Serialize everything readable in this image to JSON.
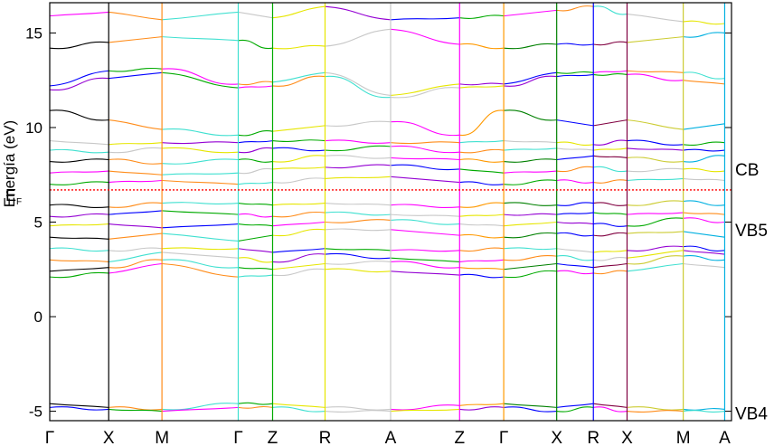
{
  "chart_data": {
    "type": "line",
    "title": "",
    "ylabel": "Energía (eV)",
    "xlabel": "",
    "ylim": [
      -5.5,
      16.6
    ],
    "yticks": [
      -5,
      0,
      5,
      10,
      15
    ],
    "xlim": [
      0,
      1
    ],
    "kpoints": [
      {
        "label": "Γ",
        "x": 0.0
      },
      {
        "label": "X",
        "x": 0.0865
      },
      {
        "label": "M",
        "x": 0.1646
      },
      {
        "label": "Γ",
        "x": 0.2765
      },
      {
        "label": "Z",
        "x": 0.3269
      },
      {
        "label": "R",
        "x": 0.4038
      },
      {
        "label": "A",
        "x": 0.5
      },
      {
        "label": "Z",
        "x": 0.6012
      },
      {
        "label": "Γ",
        "x": 0.6659
      },
      {
        "label": "X",
        "x": 0.7436
      },
      {
        "label": "R",
        "x": 0.7974
      },
      {
        "label": "X",
        "x": 0.8468
      },
      {
        "label": "M",
        "x": 0.9292
      },
      {
        "label": "A",
        "x": 0.99
      }
    ],
    "fermi_level": {
      "label": "E",
      "subscript": "F",
      "value": 6.7,
      "color": "#ff0000"
    },
    "right_annotations": [
      {
        "label": "CB",
        "y": 7.8
      },
      {
        "label": "VB5",
        "y": 4.6
      },
      {
        "label": "VB4",
        "y": -5.1
      }
    ],
    "segment_colors": [
      "#000000",
      "#ff8c1a",
      "#40e0d0",
      "#00aa00",
      "#e6e600",
      "#c8c8c8",
      "#ff00ff",
      "#ff9900",
      "#008000",
      "#0000ff",
      "#800040",
      "#cccc33",
      "#00b0e0"
    ],
    "band_colors": [
      "#9400d3",
      "#0000ff",
      "#00aa00",
      "#ff00ff",
      "#ff8c1a",
      "#40e0d0",
      "#c8c8c8",
      "#e6e600"
    ],
    "bands": [
      {
        "energies": [
          -4.6,
          -4.8,
          -4.9,
          -4.6,
          -4.6,
          -4.8,
          -4.9,
          -4.7,
          -4.6,
          -4.8,
          -4.6,
          -4.8,
          -4.9,
          -4.9
        ]
      },
      {
        "energies": [
          -4.8,
          -4.9,
          -5.0,
          -4.8,
          -4.8,
          -5.0,
          -5.0,
          -4.9,
          -4.8,
          -5.0,
          -4.8,
          -5.0,
          -5.0,
          -5.0
        ]
      },
      {
        "energies": [
          2.1,
          2.3,
          2.8,
          2.1,
          2.2,
          2.5,
          2.4,
          2.2,
          2.1,
          2.4,
          2.3,
          2.4,
          2.8,
          2.6
        ]
      },
      {
        "energies": [
          2.4,
          2.6,
          3.0,
          2.6,
          2.5,
          2.8,
          2.9,
          2.6,
          2.5,
          2.8,
          2.6,
          2.8,
          3.2,
          3.0
        ]
      },
      {
        "energies": [
          3.0,
          2.9,
          3.4,
          3.1,
          2.9,
          3.3,
          3.1,
          2.9,
          3.0,
          3.2,
          3.0,
          3.1,
          3.5,
          3.3
        ]
      },
      {
        "energies": [
          3.6,
          3.5,
          3.6,
          3.6,
          3.4,
          3.6,
          3.5,
          3.5,
          3.6,
          3.6,
          3.4,
          3.5,
          3.7,
          3.5
        ]
      },
      {
        "energies": [
          4.2,
          4.1,
          4.4,
          4.0,
          4.3,
          4.6,
          4.6,
          4.3,
          4.2,
          4.4,
          4.3,
          4.4,
          4.5,
          4.2
        ]
      },
      {
        "energies": [
          4.8,
          4.9,
          4.7,
          4.9,
          4.8,
          5.0,
          5.1,
          4.9,
          4.8,
          5.0,
          4.9,
          4.8,
          5.2,
          5.0
        ]
      },
      {
        "energies": [
          5.3,
          5.4,
          5.6,
          5.4,
          5.3,
          5.5,
          5.4,
          5.3,
          5.4,
          5.4,
          5.5,
          5.4,
          5.5,
          5.4
        ]
      },
      {
        "energies": [
          5.9,
          5.8,
          6.0,
          6.0,
          5.9,
          6.0,
          5.9,
          5.8,
          6.0,
          5.9,
          6.0,
          5.9,
          6.1,
          5.9
        ]
      },
      {
        "energies": [
          7.0,
          7.1,
          7.2,
          7.0,
          7.1,
          7.3,
          7.4,
          7.1,
          7.0,
          7.2,
          7.1,
          7.2,
          7.3,
          7.2
        ]
      },
      {
        "energies": [
          7.6,
          7.7,
          7.5,
          7.6,
          7.8,
          7.9,
          8.0,
          7.8,
          7.6,
          7.7,
          7.9,
          7.7,
          7.8,
          7.7
        ]
      },
      {
        "energies": [
          8.2,
          8.3,
          8.1,
          8.3,
          8.2,
          8.5,
          8.4,
          8.3,
          8.2,
          8.3,
          8.5,
          8.4,
          8.2,
          8.5
        ]
      },
      {
        "energies": [
          8.8,
          8.7,
          8.9,
          8.7,
          8.9,
          8.8,
          9.0,
          8.7,
          8.8,
          8.9,
          8.8,
          8.9,
          8.8,
          8.8
        ]
      },
      {
        "energies": [
          9.3,
          9.1,
          9.2,
          9.2,
          9.3,
          9.3,
          9.2,
          9.2,
          9.3,
          9.2,
          9.1,
          9.3,
          9.1,
          9.2
        ]
      },
      {
        "energies": [
          10.9,
          10.4,
          9.9,
          9.6,
          9.8,
          10.1,
          10.3,
          9.6,
          10.9,
          10.4,
          10.1,
          10.4,
          9.9,
          10.2
        ]
      },
      {
        "energies": [
          12.0,
          12.6,
          12.9,
          12.1,
          12.2,
          12.7,
          11.6,
          12.1,
          12.2,
          12.7,
          12.8,
          12.8,
          12.5,
          12.3
        ]
      },
      {
        "energies": [
          12.2,
          13.0,
          13.1,
          12.3,
          12.4,
          12.9,
          11.7,
          12.3,
          12.3,
          12.9,
          12.9,
          13.0,
          12.9,
          12.6
        ]
      },
      {
        "energies": [
          14.2,
          14.5,
          14.8,
          14.6,
          14.2,
          14.3,
          15.2,
          14.4,
          14.2,
          14.4,
          14.4,
          14.5,
          14.8,
          15.0
        ]
      },
      {
        "energies": [
          15.9,
          16.1,
          15.7,
          16.1,
          15.8,
          16.4,
          15.7,
          15.8,
          15.9,
          16.2,
          16.4,
          16.0,
          15.6,
          15.5
        ]
      }
    ]
  }
}
